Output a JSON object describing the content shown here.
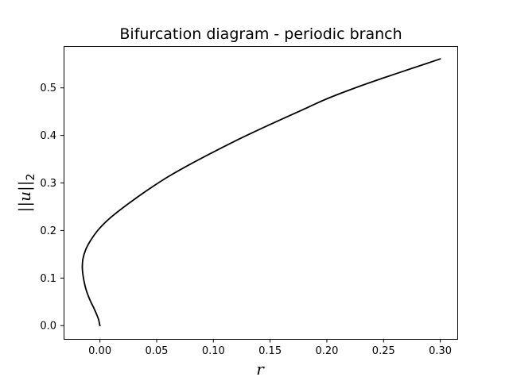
{
  "chart_data": {
    "type": "line",
    "title": "Bifurcation diagram - periodic branch",
    "xlabel": "r",
    "ylabel": {
      "base": "||u||",
      "subscript": "2"
    },
    "xlim": [
      -0.032,
      0.315
    ],
    "ylim": [
      -0.028,
      0.588
    ],
    "xticks": [
      0.0,
      0.05,
      0.1,
      0.15,
      0.2,
      0.25,
      0.3
    ],
    "xtick_labels": [
      "0.00",
      "0.05",
      "0.10",
      "0.15",
      "0.20",
      "0.25",
      "0.30"
    ],
    "yticks": [
      0.0,
      0.1,
      0.2,
      0.3,
      0.4,
      0.5
    ],
    "ytick_labels": [
      "0.0",
      "0.1",
      "0.2",
      "0.3",
      "0.4",
      "0.5"
    ],
    "grid": false,
    "line_color": "#000000",
    "series": [
      {
        "points": [
          [
            0.0,
            0.0
          ],
          [
            -0.0015,
            0.015
          ],
          [
            -0.005,
            0.035
          ],
          [
            -0.009,
            0.055
          ],
          [
            -0.0125,
            0.078
          ],
          [
            -0.0145,
            0.1
          ],
          [
            -0.0155,
            0.12
          ],
          [
            -0.015,
            0.14
          ],
          [
            -0.0125,
            0.16
          ],
          [
            -0.008,
            0.18
          ],
          [
            -0.002,
            0.2
          ],
          [
            0.006,
            0.22
          ],
          [
            0.016,
            0.24
          ],
          [
            0.03,
            0.265
          ],
          [
            0.045,
            0.29
          ],
          [
            0.06,
            0.313
          ],
          [
            0.08,
            0.34
          ],
          [
            0.1,
            0.365
          ],
          [
            0.125,
            0.395
          ],
          [
            0.15,
            0.423
          ],
          [
            0.175,
            0.45
          ],
          [
            0.2,
            0.477
          ],
          [
            0.225,
            0.5
          ],
          [
            0.25,
            0.521
          ],
          [
            0.275,
            0.541
          ],
          [
            0.3,
            0.561
          ]
        ]
      }
    ]
  }
}
